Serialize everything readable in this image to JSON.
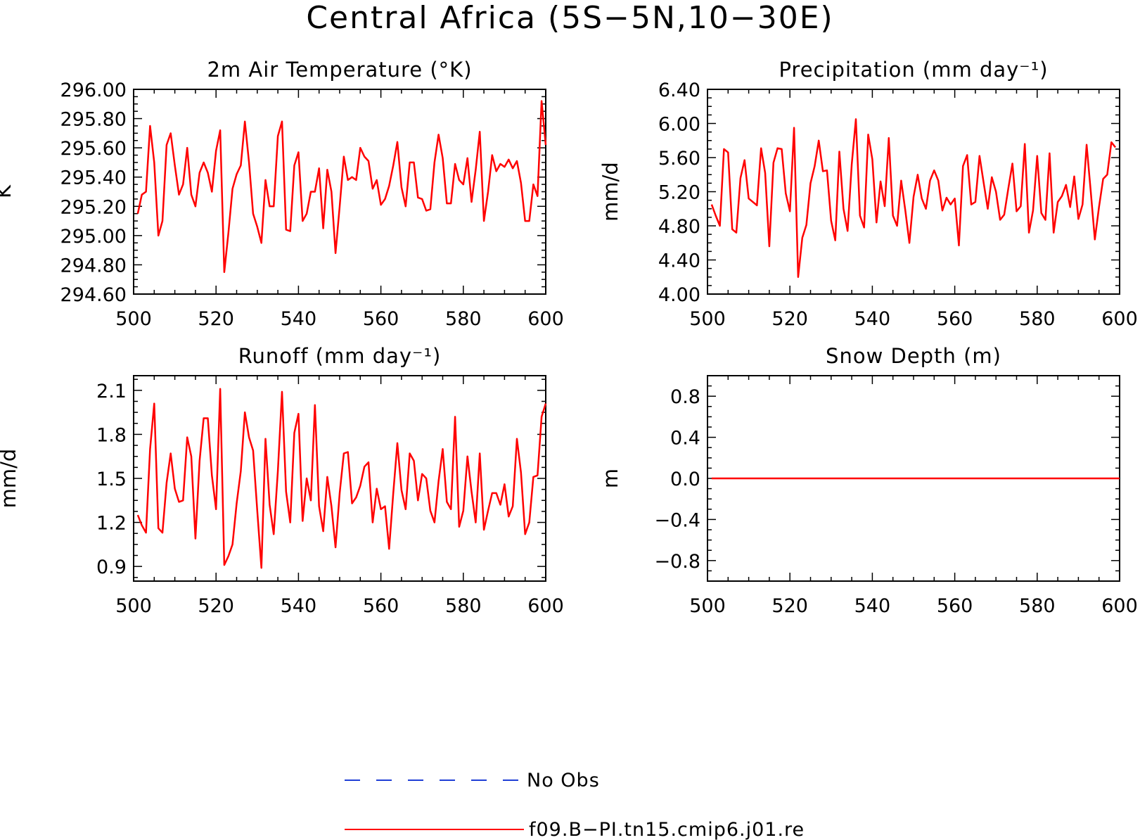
{
  "title": "Central Africa (5S−5N,10−30E)",
  "legend": {
    "items": [
      {
        "label": "No Obs",
        "color": "#1f3fd6",
        "dash": "dashed"
      },
      {
        "label": "f09.B−PI.tn15.cmip6.j01.re",
        "color": "#ff0000",
        "dash": "solid"
      }
    ]
  },
  "chart_data": [
    {
      "type": "line",
      "title": "2m Air Temperature (°K)",
      "xlabel": "",
      "ylabel": "K",
      "xlim": [
        500,
        600
      ],
      "ylim": [
        294.6,
        296.0
      ],
      "xticks": [
        "500",
        "520",
        "540",
        "560",
        "580",
        "600"
      ],
      "yticks": [
        "294.60",
        "294.80",
        "295.00",
        "295.20",
        "295.40",
        "295.60",
        "295.80",
        "296.00"
      ],
      "series": [
        {
          "name": "f09.B−PI.tn15.cmip6.j01.re",
          "color": "#ff0000",
          "x_start": 501,
          "values": [
            295.15,
            295.28,
            295.3,
            295.75,
            295.5,
            295.0,
            295.1,
            295.62,
            295.7,
            295.48,
            295.28,
            295.35,
            295.6,
            295.28,
            295.2,
            295.43,
            295.5,
            295.43,
            295.3,
            295.58,
            295.72,
            294.75,
            295.02,
            295.32,
            295.42,
            295.48,
            295.78,
            295.5,
            295.15,
            295.06,
            294.95,
            295.38,
            295.2,
            295.2,
            295.68,
            295.78,
            295.04,
            295.03,
            295.48,
            295.57,
            295.1,
            295.15,
            295.3,
            295.3,
            295.46,
            295.05,
            295.45,
            295.3,
            294.88,
            295.2,
            295.54,
            295.38,
            295.4,
            295.38,
            295.6,
            295.54,
            295.51,
            295.32,
            295.38,
            295.21,
            295.25,
            295.34,
            295.48,
            295.64,
            295.33,
            295.2,
            295.5,
            295.5,
            295.26,
            295.25,
            295.17,
            295.18,
            295.5,
            295.69,
            295.53,
            295.22,
            295.22,
            295.49,
            295.38,
            295.35,
            295.53,
            295.23,
            295.45,
            295.71,
            295.1,
            295.3,
            295.55,
            295.44,
            295.49,
            295.47,
            295.52,
            295.46,
            295.51,
            295.36,
            295.1,
            295.1,
            295.35,
            295.27,
            295.92,
            295.62
          ]
        }
      ]
    },
    {
      "type": "line",
      "title": "Precipitation (mm day⁻¹)",
      "xlabel": "",
      "ylabel": "mm/d",
      "xlim": [
        500,
        600
      ],
      "ylim": [
        4.0,
        6.4
      ],
      "xticks": [
        "500",
        "520",
        "540",
        "560",
        "580",
        "600"
      ],
      "yticks": [
        "4.00",
        "4.40",
        "4.80",
        "5.20",
        "5.60",
        "6.00",
        "6.40"
      ],
      "series": [
        {
          "name": "f09.B−PI.tn15.cmip6.j01.re",
          "color": "#ff0000",
          "x_start": 501,
          "values": [
            5.05,
            4.92,
            4.8,
            5.7,
            5.66,
            4.76,
            4.72,
            5.36,
            5.57,
            5.12,
            5.08,
            5.04,
            5.71,
            5.42,
            4.56,
            5.54,
            5.71,
            5.7,
            5.18,
            4.97,
            5.95,
            4.2,
            4.66,
            4.81,
            5.3,
            5.5,
            5.8,
            5.44,
            5.45,
            4.86,
            4.63,
            5.67,
            5.0,
            4.74,
            5.52,
            6.05,
            4.92,
            4.78,
            5.87,
            5.58,
            4.84,
            5.32,
            5.03,
            5.83,
            4.92,
            4.8,
            5.33,
            4.98,
            4.6,
            5.14,
            5.4,
            5.12,
            5.0,
            5.33,
            5.45,
            5.33,
            4.98,
            5.13,
            5.05,
            5.12,
            4.57,
            5.5,
            5.63,
            5.05,
            5.08,
            5.62,
            5.31,
            5.0,
            5.37,
            5.2,
            4.87,
            4.93,
            5.24,
            5.53,
            4.97,
            5.03,
            5.76,
            4.72,
            4.98,
            5.62,
            4.95,
            4.87,
            5.65,
            4.72,
            5.08,
            5.15,
            5.28,
            5.02,
            5.38,
            4.88,
            5.05,
            5.75,
            5.2,
            4.64,
            5.02,
            5.35,
            5.4,
            5.78,
            5.72
          ]
        }
      ]
    },
    {
      "type": "line",
      "title": "Runoff (mm day⁻¹)",
      "xlabel": "",
      "ylabel": "mm/d",
      "xlim": [
        500,
        600
      ],
      "ylim": [
        0.8,
        2.2
      ],
      "xticks": [
        "500",
        "520",
        "540",
        "560",
        "580",
        "600"
      ],
      "yticks": [
        "0.9",
        "1.2",
        "1.5",
        "1.8",
        "2.1"
      ],
      "series": [
        {
          "name": "f09.B−PI.tn15.cmip6.j01.re",
          "color": "#ff0000",
          "x_start": 501,
          "values": [
            1.25,
            1.18,
            1.13,
            1.7,
            2.01,
            1.16,
            1.13,
            1.47,
            1.67,
            1.43,
            1.34,
            1.35,
            1.78,
            1.65,
            1.09,
            1.62,
            1.91,
            1.91,
            1.52,
            1.29,
            2.11,
            0.91,
            0.97,
            1.05,
            1.33,
            1.55,
            1.95,
            1.78,
            1.69,
            1.28,
            0.89,
            1.77,
            1.32,
            1.12,
            1.55,
            2.09,
            1.41,
            1.2,
            1.81,
            1.94,
            1.21,
            1.5,
            1.35,
            2.0,
            1.31,
            1.14,
            1.51,
            1.31,
            1.03,
            1.4,
            1.67,
            1.68,
            1.33,
            1.37,
            1.45,
            1.58,
            1.61,
            1.2,
            1.43,
            1.29,
            1.31,
            1.02,
            1.4,
            1.74,
            1.42,
            1.29,
            1.67,
            1.62,
            1.35,
            1.53,
            1.5,
            1.28,
            1.2,
            1.48,
            1.7,
            1.34,
            1.29,
            1.92,
            1.17,
            1.28,
            1.65,
            1.41,
            1.2,
            1.67,
            1.15,
            1.28,
            1.4,
            1.4,
            1.32,
            1.46,
            1.24,
            1.31,
            1.77,
            1.54,
            1.12,
            1.2,
            1.51,
            1.52,
            1.92,
            2.01
          ]
        }
      ]
    },
    {
      "type": "line",
      "title": "Snow Depth (m)",
      "xlabel": "",
      "ylabel": "m",
      "xlim": [
        500,
        600
      ],
      "ylim": [
        -1.0,
        1.0
      ],
      "xticks": [
        "500",
        "520",
        "540",
        "560",
        "580",
        "600"
      ],
      "yticks": [
        "−0.8",
        "−0.4",
        "0.0",
        "0.4",
        "0.8"
      ],
      "ytick_values": [
        -0.8,
        -0.4,
        0.0,
        0.4,
        0.8
      ],
      "series": [
        {
          "name": "f09.B−PI.tn15.cmip6.j01.re",
          "color": "#ff0000",
          "x": [
            501,
            600
          ],
          "values": [
            0.0,
            0.0
          ]
        }
      ]
    }
  ]
}
